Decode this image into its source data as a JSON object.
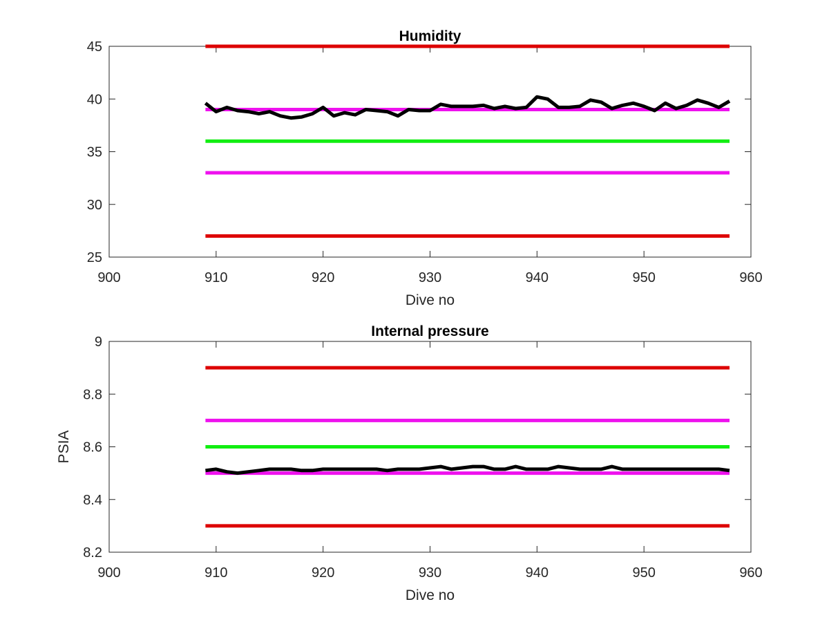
{
  "chart_data": [
    {
      "type": "line",
      "title": "Humidity",
      "xlabel": "Dive no",
      "ylabel": "",
      "xlim": [
        900,
        960
      ],
      "ylim": [
        25,
        45
      ],
      "xticks": [
        900,
        910,
        920,
        930,
        940,
        950,
        960
      ],
      "yticks": [
        25,
        30,
        35,
        40,
        45
      ],
      "grid": false,
      "series": [
        {
          "color": "#dd0000",
          "style": "constant",
          "x": [
            909,
            958
          ],
          "y": [
            45,
            45
          ]
        },
        {
          "color": "#dd0000",
          "style": "constant",
          "x": [
            909,
            958
          ],
          "y": [
            27,
            27
          ]
        },
        {
          "color": "#ee11ee",
          "style": "constant",
          "x": [
            909,
            958
          ],
          "y": [
            39,
            39
          ]
        },
        {
          "color": "#ee11ee",
          "style": "constant",
          "x": [
            909,
            958
          ],
          "y": [
            33,
            33
          ]
        },
        {
          "color": "#11ee11",
          "style": "constant",
          "x": [
            909,
            958
          ],
          "y": [
            36,
            36
          ]
        },
        {
          "color": "#000000",
          "style": "data",
          "x": [
            909,
            910,
            911,
            912,
            913,
            914,
            915,
            916,
            917,
            918,
            919,
            920,
            921,
            922,
            923,
            924,
            925,
            926,
            927,
            928,
            929,
            930,
            931,
            932,
            933,
            934,
            935,
            936,
            937,
            938,
            939,
            940,
            941,
            942,
            943,
            944,
            945,
            946,
            947,
            948,
            949,
            950,
            951,
            952,
            953,
            954,
            955,
            956,
            957,
            958
          ],
          "y": [
            39.6,
            38.8,
            39.2,
            38.9,
            38.8,
            38.6,
            38.8,
            38.4,
            38.2,
            38.3,
            38.6,
            39.2,
            38.4,
            38.7,
            38.5,
            39.0,
            38.9,
            38.8,
            38.4,
            39.0,
            38.9,
            38.9,
            39.5,
            39.3,
            39.3,
            39.3,
            39.4,
            39.1,
            39.3,
            39.1,
            39.2,
            40.2,
            40.0,
            39.2,
            39.2,
            39.3,
            39.9,
            39.7,
            39.1,
            39.4,
            39.6,
            39.3,
            38.9,
            39.6,
            39.1,
            39.4,
            39.9,
            39.6,
            39.2,
            39.8
          ]
        }
      ]
    },
    {
      "type": "line",
      "title": "Internal pressure",
      "xlabel": "Dive no",
      "ylabel": "PSIA",
      "xlim": [
        900,
        960
      ],
      "ylim": [
        8.2,
        9
      ],
      "xticks": [
        900,
        910,
        920,
        930,
        940,
        950,
        960
      ],
      "yticks": [
        8.2,
        8.4,
        8.6,
        8.8,
        9
      ],
      "grid": false,
      "series": [
        {
          "color": "#dd0000",
          "style": "constant",
          "x": [
            909,
            958
          ],
          "y": [
            8.9,
            8.9
          ]
        },
        {
          "color": "#dd0000",
          "style": "constant",
          "x": [
            909,
            958
          ],
          "y": [
            8.3,
            8.3
          ]
        },
        {
          "color": "#ee11ee",
          "style": "constant",
          "x": [
            909,
            958
          ],
          "y": [
            8.7,
            8.7
          ]
        },
        {
          "color": "#ee11ee",
          "style": "constant",
          "x": [
            909,
            958
          ],
          "y": [
            8.5,
            8.5
          ]
        },
        {
          "color": "#11ee11",
          "style": "constant",
          "x": [
            909,
            958
          ],
          "y": [
            8.6,
            8.6
          ]
        },
        {
          "color": "#000000",
          "style": "data",
          "x": [
            909,
            910,
            911,
            912,
            913,
            914,
            915,
            916,
            917,
            918,
            919,
            920,
            921,
            922,
            923,
            924,
            925,
            926,
            927,
            928,
            929,
            930,
            931,
            932,
            933,
            934,
            935,
            936,
            937,
            938,
            939,
            940,
            941,
            942,
            943,
            944,
            945,
            946,
            947,
            948,
            949,
            950,
            951,
            952,
            953,
            954,
            955,
            956,
            957,
            958
          ],
          "y": [
            8.51,
            8.515,
            8.505,
            8.5,
            8.505,
            8.51,
            8.515,
            8.515,
            8.515,
            8.51,
            8.51,
            8.515,
            8.515,
            8.515,
            8.515,
            8.515,
            8.515,
            8.51,
            8.515,
            8.515,
            8.515,
            8.52,
            8.525,
            8.515,
            8.52,
            8.525,
            8.525,
            8.515,
            8.515,
            8.525,
            8.515,
            8.515,
            8.515,
            8.525,
            8.52,
            8.515,
            8.515,
            8.515,
            8.525,
            8.515,
            8.515,
            8.515,
            8.515,
            8.515,
            8.515,
            8.515,
            8.515,
            8.515,
            8.515,
            8.51
          ]
        }
      ]
    }
  ]
}
